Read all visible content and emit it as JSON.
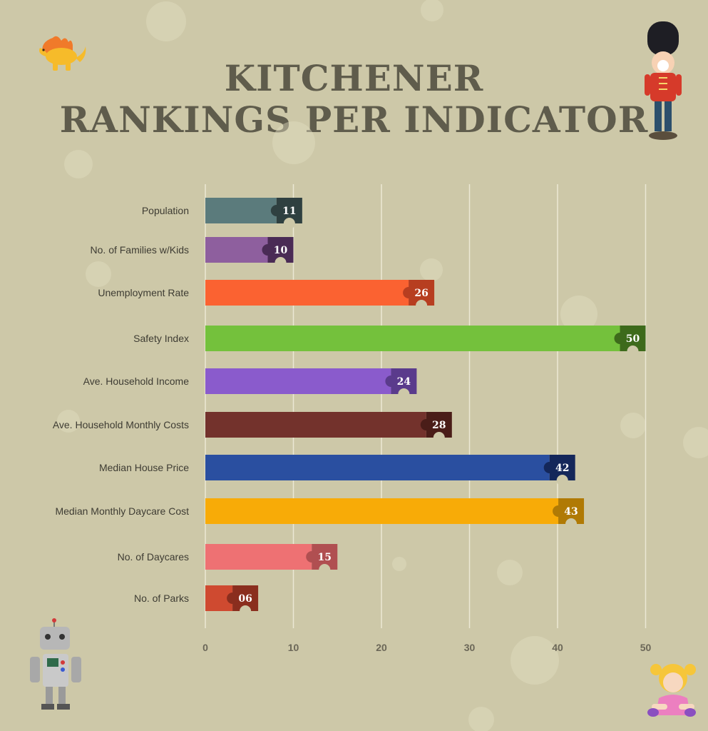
{
  "header": {
    "title_line1": "KITCHENER",
    "title_line2": "RANKINGS PER INDICATOR"
  },
  "chart_data": {
    "type": "bar",
    "orientation": "horizontal",
    "title": "KITCHENER RANKINGS PER INDICATOR",
    "categories": [
      "Population",
      "No. of Families w/Kids",
      "Unemployment Rate",
      "Safety Index",
      "Ave. Household Income",
      "Ave. Household Monthly Costs",
      "Median House Price",
      "Median Monthly Daycare Cost",
      "No. of Daycares",
      "No. of Parks"
    ],
    "values": [
      11,
      10,
      26,
      50,
      24,
      28,
      42,
      43,
      15,
      6
    ],
    "value_labels": [
      "11",
      "10",
      "26",
      "50",
      "24",
      "28",
      "42",
      "43",
      "15",
      "06"
    ],
    "bar_colors": [
      "#5b7b7c",
      "#8e5f9e",
      "#fb6231",
      "#74c13c",
      "#8a5bcc",
      "#73322c",
      "#2a4fa0",
      "#f8ab07",
      "#ee7173",
      "#cf4a30"
    ],
    "tab_colors": [
      "#2f4040",
      "#4a2b55",
      "#b73e20",
      "#3d6a1b",
      "#5a3b8c",
      "#4a1d18",
      "#14275a",
      "#b07a05",
      "#b04f51",
      "#8a2e1e"
    ],
    "xticks": [
      0,
      10,
      20,
      30,
      40,
      50
    ],
    "xlim": [
      0,
      53
    ],
    "grid": true,
    "xlabel": "",
    "ylabel": ""
  },
  "decorations": {
    "top_left_icon": "dinosaur-toy-icon",
    "top_right_icon": "toy-soldier-icon",
    "bottom_left_icon": "robot-toy-icon",
    "bottom_right_icon": "doll-toy-icon"
  },
  "colors": {
    "background": "#cdc8a8",
    "title": "#5f5c4c",
    "label": "#3e3c33",
    "tick": "#6b6758",
    "grid": "#ece8d4"
  }
}
